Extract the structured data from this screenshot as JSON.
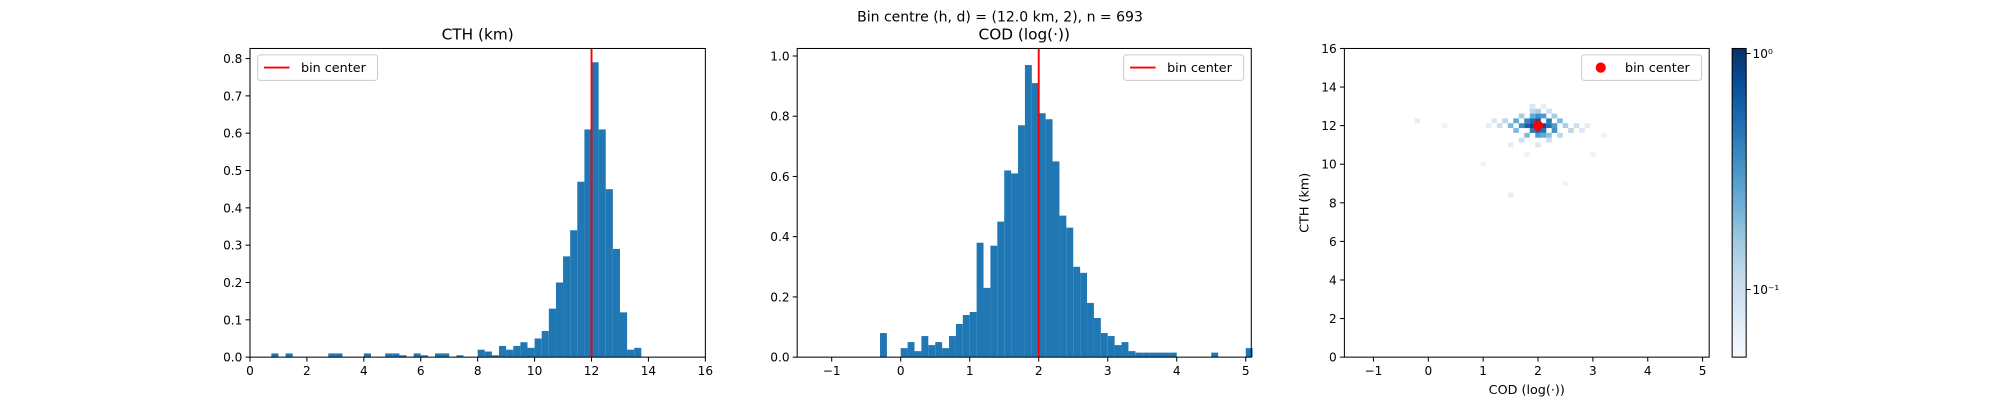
{
  "title": "Bin centre (h, d) = (12.0 km, 2), n = 693",
  "chart_data": [
    {
      "type": "histogram",
      "title": "CTH (km)",
      "color": "#1f77b4",
      "bins": [
        0.75,
        1.0,
        1.25,
        1.5,
        1.75,
        2.0,
        2.25,
        2.5,
        2.75,
        3.0,
        3.25,
        3.5,
        3.75,
        4.0,
        4.25,
        4.5,
        4.75,
        5.0,
        5.25,
        5.5,
        5.75,
        6.0,
        6.25,
        6.5,
        6.75,
        7.0,
        7.25,
        7.5,
        7.75,
        8.0,
        8.25,
        8.5,
        8.75,
        9.0,
        9.25,
        9.5,
        9.75,
        10.0,
        10.25,
        10.5,
        10.75,
        11.0,
        11.25,
        11.5,
        11.75,
        12.0,
        12.25,
        12.5,
        12.75,
        13.0,
        13.25,
        13.5,
        13.75
      ],
      "values": [
        0.01,
        0,
        0.01,
        0,
        0,
        0,
        0,
        0,
        0.01,
        0.01,
        0,
        0,
        0,
        0.01,
        0,
        0,
        0.01,
        0.01,
        0.005,
        0,
        0.01,
        0.005,
        0,
        0.01,
        0.01,
        0,
        0.005,
        0,
        0,
        0.02,
        0.015,
        0.005,
        0.03,
        0.02,
        0.03,
        0.04,
        0.025,
        0.05,
        0.07,
        0.13,
        0.2,
        0.27,
        0.34,
        0.47,
        0.61,
        0.79,
        0.61,
        0.45,
        0.29,
        0.12,
        0.02,
        0.025
      ],
      "xlim": [
        0,
        16
      ],
      "xticks": [
        0,
        2,
        4,
        6,
        8,
        10,
        12,
        14,
        16
      ],
      "ylim": [
        0,
        0.827
      ],
      "yticks": [
        {
          "value": 0,
          "label": "0.0"
        },
        0.1,
        0.2,
        0.3,
        0.4,
        0.5,
        0.6,
        0.7,
        0.8
      ],
      "reference": {
        "name": "bin center",
        "x": 12,
        "color": "#ff0000"
      },
      "legend": "upper left"
    },
    {
      "type": "histogram",
      "title": "COD (log(·))",
      "color": "#1f77b4",
      "bins": [
        -0.3,
        -0.2,
        -0.1,
        0.0,
        0.1,
        0.2,
        0.3,
        0.4,
        0.5,
        0.6,
        0.7,
        0.8,
        0.9,
        1.0,
        1.1,
        1.2,
        1.3,
        1.4,
        1.5,
        1.6,
        1.7,
        1.8,
        1.9,
        2.0,
        2.1,
        2.2,
        2.3,
        2.4,
        2.5,
        2.6,
        2.7,
        2.8,
        2.9,
        3.0,
        3.1,
        3.2,
        3.3,
        3.4,
        3.5,
        3.6,
        3.7,
        3.8,
        3.9,
        4.0,
        4.1,
        4.2,
        4.3,
        4.4,
        4.5,
        4.6,
        4.7,
        4.8,
        4.9,
        5.0,
        5.1
      ],
      "values": [
        0.08,
        0,
        0,
        0.03,
        0.05,
        0.02,
        0.07,
        0.04,
        0.05,
        0.03,
        0.07,
        0.11,
        0.14,
        0.15,
        0.38,
        0.23,
        0.37,
        0.45,
        0.62,
        0.61,
        0.77,
        0.97,
        0.91,
        0.81,
        0.79,
        0.65,
        0.47,
        0.43,
        0.3,
        0.28,
        0.18,
        0.13,
        0.08,
        0.07,
        0.04,
        0.05,
        0.02,
        0.015,
        0.015,
        0.015,
        0.015,
        0.015,
        0.015,
        0,
        0,
        0,
        0,
        0,
        0.015,
        0,
        0,
        0,
        0,
        0.03
      ],
      "xlim": [
        -1.5,
        5.08
      ],
      "xticks": [
        {
          "value": -1,
          "label": "−1"
        },
        0,
        1,
        2,
        3,
        4,
        5
      ],
      "ylim": [
        0,
        1.025
      ],
      "yticks": [
        {
          "value": 0,
          "label": "0.0"
        },
        0.2,
        0.4,
        0.6,
        0.8,
        {
          "value": 1,
          "label": "1.0"
        }
      ],
      "reference": {
        "name": "bin center",
        "x": 2,
        "color": "#ff0000"
      },
      "legend": "upper right"
    },
    {
      "type": "hist2d",
      "xlabel": "COD (log(·))",
      "ylabel": "CTH (km)",
      "x": [
        2.0,
        1.9,
        2.1,
        2.0,
        2.0,
        1.9,
        2.1,
        1.8,
        2.2,
        1.8,
        2.2,
        1.9,
        2.3,
        1.7,
        2.3,
        1.6,
        2.4,
        2.0,
        1.9,
        2.1,
        2.0,
        2.1,
        1.8,
        2.2,
        1.7,
        2.3,
        2.0,
        1.9,
        2.2,
        1.5,
        2.5,
        1.4,
        2.6,
        1.3,
        2.7,
        1.2,
        2.8,
        1.6,
        2.4,
        1.7,
        2.2,
        2.0,
        1.9,
        2.1,
        1.1,
        2.9,
        -0.2,
        0.3,
        3.2,
        1.5,
        1.8,
        1.5,
        2.5,
        1.0,
        3.0
      ],
      "y": [
        12.0,
        12.0,
        12.0,
        12.25,
        11.75,
        12.25,
        11.75,
        12.0,
        12.0,
        12.25,
        12.25,
        11.75,
        11.75,
        12.0,
        12.0,
        12.25,
        12.25,
        12.5,
        12.5,
        12.5,
        11.5,
        11.5,
        11.5,
        11.5,
        12.5,
        12.5,
        12.75,
        12.75,
        12.75,
        12.0,
        12.0,
        12.25,
        11.75,
        12.0,
        12.0,
        12.25,
        11.75,
        11.75,
        11.5,
        11.25,
        11.25,
        11.0,
        13.0,
        13.0,
        12.0,
        12.0,
        12.25,
        12.0,
        11.5,
        11.0,
        10.5,
        8.4,
        9.0,
        10.0,
        10.5
      ],
      "values": [
        1.0,
        0.8,
        0.75,
        0.7,
        0.6,
        0.55,
        0.5,
        0.6,
        0.5,
        0.4,
        0.45,
        0.45,
        0.35,
        0.35,
        0.3,
        0.25,
        0.2,
        0.35,
        0.25,
        0.3,
        0.3,
        0.25,
        0.2,
        0.18,
        0.15,
        0.15,
        0.15,
        0.12,
        0.1,
        0.2,
        0.15,
        0.12,
        0.12,
        0.1,
        0.1,
        0.08,
        0.08,
        0.2,
        0.12,
        0.1,
        0.1,
        0.08,
        0.08,
        0.07,
        0.07,
        0.07,
        0.07,
        0.06,
        0.06,
        0.07,
        0.06,
        0.07,
        0.06,
        0.06,
        0.06
      ],
      "xlim": [
        -1.53,
        5.12
      ],
      "xticks": [
        {
          "value": -1,
          "label": "−1"
        },
        0,
        1,
        2,
        3,
        4,
        5
      ],
      "ylim": [
        0,
        16
      ],
      "yticks": [
        0,
        2,
        4,
        6,
        8,
        10,
        12,
        14,
        16
      ],
      "point": {
        "name": "bin center",
        "x": 2,
        "y": 12,
        "color": "#ff0000"
      },
      "legend": "upper right",
      "colorbar": {
        "log": true,
        "lim": [
          0.0517,
          1.05
        ],
        "ticks": [
          {
            "value": 1,
            "label": "10⁰"
          },
          {
            "value": 0.1,
            "label": "10⁻¹"
          }
        ]
      }
    }
  ]
}
